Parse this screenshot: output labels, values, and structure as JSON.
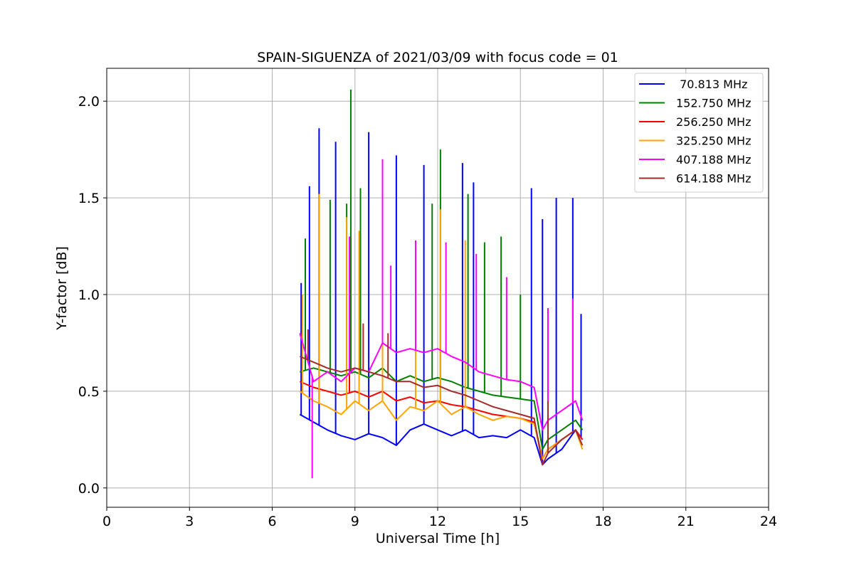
{
  "chart_data": {
    "type": "line",
    "title": "SPAIN-SIGUENZA of 2021/03/09 with focus code = 01",
    "xlabel": "Universal Time [h]",
    "ylabel": "Y-factor [dB]",
    "xlim": [
      0,
      24
    ],
    "ylim": [
      -0.1,
      2.17
    ],
    "xticks": [
      0,
      3,
      6,
      9,
      12,
      15,
      18,
      21,
      24
    ],
    "yticks": [
      0.0,
      0.5,
      1.0,
      1.5,
      2.0
    ],
    "xtick_labels": [
      "0",
      "3",
      "6",
      "9",
      "12",
      "15",
      "18",
      "21",
      "24"
    ],
    "ytick_labels": [
      "0.0",
      "0.5",
      "1.0",
      "1.5",
      "2.0"
    ],
    "grid": true,
    "legend_position": "top-right",
    "series": [
      {
        "name": " 70.813 MHz",
        "color": "#0000ff",
        "x": [
          7.0,
          7.5,
          8.0,
          8.5,
          9.0,
          9.5,
          10.0,
          10.5,
          11.0,
          11.5,
          12.0,
          12.5,
          13.0,
          13.5,
          14.0,
          14.5,
          15.0,
          15.5,
          15.8,
          16.0,
          16.5,
          17.0,
          17.25
        ],
        "y": [
          0.38,
          0.34,
          0.3,
          0.27,
          0.25,
          0.28,
          0.26,
          0.22,
          0.3,
          0.33,
          0.3,
          0.27,
          0.3,
          0.26,
          0.27,
          0.26,
          0.3,
          0.26,
          0.12,
          0.15,
          0.2,
          0.3,
          0.25
        ],
        "peaks": [
          [
            7.05,
            1.06
          ],
          [
            7.35,
            1.56
          ],
          [
            7.7,
            1.86
          ],
          [
            8.3,
            1.79
          ],
          [
            9.5,
            1.84
          ],
          [
            10.5,
            1.72
          ],
          [
            11.5,
            1.67
          ],
          [
            12.9,
            1.68
          ],
          [
            13.3,
            1.58
          ],
          [
            15.4,
            1.55
          ],
          [
            15.8,
            1.39
          ],
          [
            16.3,
            1.5
          ],
          [
            16.9,
            1.5
          ],
          [
            17.2,
            0.9
          ]
        ]
      },
      {
        "name": "152.750 MHz",
        "color": "#008000",
        "x": [
          7.0,
          7.5,
          8.0,
          8.5,
          9.0,
          9.5,
          10.0,
          10.5,
          11.0,
          11.5,
          12.0,
          12.5,
          13.0,
          13.5,
          14.0,
          14.5,
          15.0,
          15.5,
          15.8,
          16.0,
          16.5,
          17.0,
          17.25
        ],
        "y": [
          0.6,
          0.62,
          0.6,
          0.58,
          0.6,
          0.57,
          0.62,
          0.55,
          0.58,
          0.55,
          0.57,
          0.55,
          0.52,
          0.5,
          0.48,
          0.47,
          0.46,
          0.45,
          0.2,
          0.25,
          0.3,
          0.35,
          0.3
        ],
        "peaks": [
          [
            7.2,
            1.29
          ],
          [
            7.7,
            1.52
          ],
          [
            8.1,
            1.49
          ],
          [
            8.7,
            1.47
          ],
          [
            8.85,
            2.06
          ],
          [
            9.2,
            1.55
          ],
          [
            10.0,
            1.52
          ],
          [
            11.8,
            1.47
          ],
          [
            12.1,
            1.75
          ],
          [
            13.1,
            1.52
          ],
          [
            13.7,
            1.27
          ],
          [
            14.3,
            1.3
          ],
          [
            15.0,
            1.0
          ]
        ]
      },
      {
        "name": "256.250 MHz",
        "color": "#ff0000",
        "x": [
          7.0,
          7.5,
          8.0,
          8.5,
          9.0,
          9.5,
          10.0,
          10.5,
          11.0,
          11.5,
          12.0,
          12.5,
          13.0,
          13.5,
          14.0,
          14.5,
          15.0,
          15.5,
          15.8,
          16.0,
          16.5,
          17.0,
          17.25
        ],
        "y": [
          0.55,
          0.52,
          0.5,
          0.48,
          0.5,
          0.47,
          0.5,
          0.45,
          0.47,
          0.44,
          0.45,
          0.43,
          0.42,
          0.4,
          0.38,
          0.37,
          0.36,
          0.34,
          0.15,
          0.2,
          0.25,
          0.3,
          0.25
        ],
        "peaks": [
          [
            8.8,
            1.1
          ],
          [
            10.0,
            1.0
          ],
          [
            12.1,
            1.0
          ]
        ]
      },
      {
        "name": "325.250 MHz",
        "color": "#ffa500",
        "x": [
          7.0,
          7.5,
          8.0,
          8.5,
          9.0,
          9.5,
          10.0,
          10.5,
          11.0,
          11.5,
          12.0,
          12.5,
          13.0,
          13.5,
          14.0,
          14.5,
          15.0,
          15.5,
          15.8,
          16.0,
          16.5,
          17.0,
          17.25
        ],
        "y": [
          0.5,
          0.45,
          0.42,
          0.38,
          0.45,
          0.4,
          0.45,
          0.35,
          0.42,
          0.4,
          0.45,
          0.38,
          0.42,
          0.38,
          0.35,
          0.37,
          0.36,
          0.33,
          0.15,
          0.2,
          0.25,
          0.3,
          0.2
        ],
        "peaks": [
          [
            7.1,
            1.0
          ],
          [
            7.7,
            1.52
          ],
          [
            8.7,
            1.4
          ],
          [
            9.15,
            1.33
          ],
          [
            10.0,
            1.5
          ],
          [
            11.2,
            1.28
          ],
          [
            12.1,
            1.44
          ],
          [
            13.0,
            1.28
          ]
        ]
      },
      {
        "name": "407.188 MHz",
        "color": "#ff00ff",
        "x": [
          7.0,
          7.5,
          8.0,
          8.5,
          9.0,
          9.5,
          10.0,
          10.5,
          11.0,
          11.5,
          12.0,
          12.5,
          13.0,
          13.5,
          14.0,
          14.5,
          15.0,
          15.5,
          15.8,
          16.0,
          16.5,
          17.0,
          17.25
        ],
        "y": [
          0.8,
          0.55,
          0.6,
          0.55,
          0.62,
          0.6,
          0.75,
          0.7,
          0.72,
          0.7,
          0.72,
          0.68,
          0.65,
          0.6,
          0.58,
          0.56,
          0.55,
          0.52,
          0.3,
          0.35,
          0.4,
          0.45,
          0.35
        ],
        "peaks": [
          [
            7.45,
            0.05
          ],
          [
            8.8,
            1.3
          ],
          [
            10.0,
            1.7
          ],
          [
            10.3,
            1.15
          ],
          [
            11.2,
            1.28
          ],
          [
            12.3,
            1.27
          ],
          [
            13.4,
            1.21
          ],
          [
            14.5,
            1.09
          ],
          [
            16.0,
            0.93
          ],
          [
            16.9,
            0.98
          ]
        ]
      },
      {
        "name": "614.188 MHz",
        "color": "#a52a2a",
        "x": [
          7.0,
          7.5,
          8.0,
          8.5,
          9.0,
          9.5,
          10.0,
          10.5,
          11.0,
          11.5,
          12.0,
          12.5,
          13.0,
          13.5,
          14.0,
          14.5,
          15.0,
          15.5,
          15.8,
          16.0,
          16.5,
          17.0,
          17.25
        ],
        "y": [
          0.68,
          0.65,
          0.62,
          0.6,
          0.62,
          0.6,
          0.58,
          0.55,
          0.55,
          0.52,
          0.53,
          0.5,
          0.48,
          0.45,
          0.42,
          0.4,
          0.38,
          0.36,
          0.12,
          0.18,
          0.25,
          0.3,
          0.22
        ],
        "peaks": [
          [
            7.3,
            0.82
          ],
          [
            9.3,
            0.85
          ],
          [
            10.2,
            0.8
          ],
          [
            16.0,
            0.45
          ]
        ]
      }
    ]
  }
}
